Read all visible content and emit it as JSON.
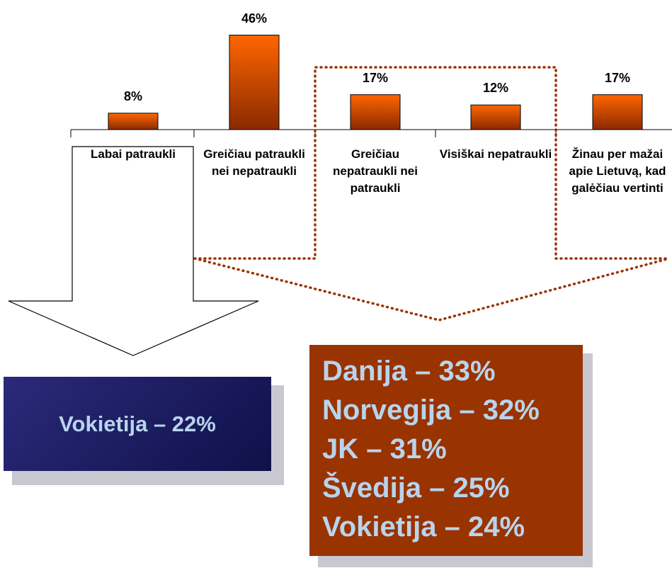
{
  "chart_data": {
    "type": "bar",
    "categories": [
      "Labai patraukli",
      "Greičiau patraukli nei nepatraukli",
      "Greičiau nepatraukli nei patraukli",
      "Visiškai nepatraukli",
      "Žinau per mažai apie Lietuvą, kad galėčiau vertinti"
    ],
    "values": [
      8,
      46,
      17,
      12,
      17
    ],
    "value_labels": [
      "8%",
      "46%",
      "17%",
      "12%",
      "17%"
    ],
    "color": "#ff6600",
    "callouts": [
      {
        "lines": [
          "Vokietija – 22%"
        ]
      },
      {
        "lines": [
          "Danija – 33%",
          "Norvegija – 32%",
          "JK – 31%",
          "Švedija – 25%",
          "Vokietija – 24%"
        ]
      }
    ]
  }
}
